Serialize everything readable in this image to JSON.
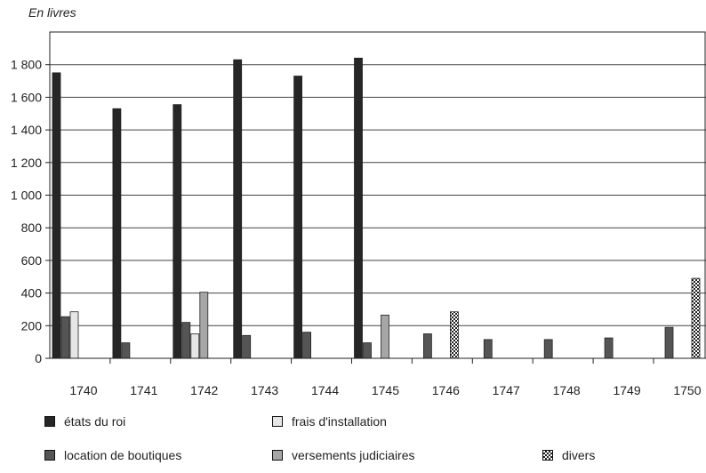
{
  "chart_data": {
    "type": "bar",
    "unit_label": "En livres",
    "categories": [
      "1740",
      "1741",
      "1742",
      "1743",
      "1744",
      "1745",
      "1746",
      "1747",
      "1748",
      "1749",
      "1750"
    ],
    "series": [
      {
        "name": "états du roi",
        "color": "#262626",
        "pattern": "solid",
        "values": [
          1750,
          1530,
          1555,
          1830,
          1730,
          1840,
          null,
          null,
          null,
          null,
          null
        ]
      },
      {
        "name": "location de boutiques",
        "color": "#555555",
        "pattern": "solid",
        "values": [
          255,
          95,
          220,
          140,
          160,
          95,
          150,
          115,
          115,
          125,
          190
        ]
      },
      {
        "name": "frais d'installation",
        "color": "#e6e6e6",
        "pattern": "solid",
        "values": [
          285,
          null,
          150,
          null,
          null,
          null,
          null,
          null,
          null,
          null,
          null
        ]
      },
      {
        "name": "versements judiciaires",
        "color": "#a6a6a6",
        "pattern": "solid",
        "values": [
          null,
          null,
          405,
          null,
          null,
          265,
          null,
          null,
          null,
          null,
          null
        ]
      },
      {
        "name": "divers",
        "color": "#ffffff",
        "pattern": "checker",
        "values": [
          null,
          null,
          null,
          null,
          null,
          null,
          285,
          null,
          null,
          null,
          490
        ]
      }
    ],
    "y_ticks": [
      0,
      200,
      400,
      600,
      800,
      1000,
      1200,
      1400,
      1600,
      1800
    ],
    "y_tick_labels": [
      "0",
      "200",
      "400",
      "600",
      "800",
      "1 000",
      "1 200",
      "1 400",
      "1 600",
      "1 800"
    ],
    "ylim": [
      0,
      2000
    ],
    "grid": true,
    "legend_position": "bottom",
    "legend_order": [
      0,
      2,
      1,
      3,
      4
    ]
  }
}
